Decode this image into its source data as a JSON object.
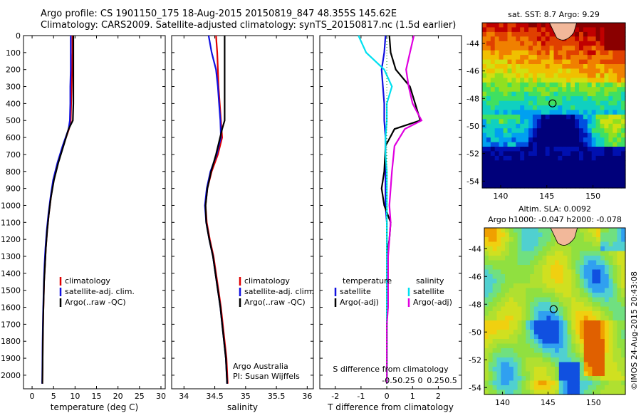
{
  "title_line1": "Argo profile: CS 1901150_175 18-Aug-2015 20150819_847 48.355S 145.62E",
  "title_line2": "Climatology: CARS2009. Satellite-adjusted climatology: synTS_20150817.nc (1.5d earlier)",
  "colors": {
    "climatology": "#e00000",
    "satellite": "#1010e0",
    "argo": "#000000",
    "sat_salinity": "#00e0f0",
    "argo_salinity_adj": "#e000e0"
  },
  "depth_ticks": [
    "0",
    "100",
    "200",
    "300",
    "400",
    "500",
    "600",
    "700",
    "800",
    "900",
    "1000",
    "1100",
    "1200",
    "1300",
    "1400",
    "1500",
    "1600",
    "1700",
    "1800",
    "1900",
    "2000"
  ],
  "chart_data": [
    {
      "type": "line",
      "xlabel": "temperature (deg C)",
      "xlim": [
        -2,
        31
      ],
      "xticks": [
        "0",
        "5",
        "10",
        "15",
        "20",
        "25",
        "30"
      ],
      "ylim": [
        2080,
        0
      ],
      "legend": [
        "climatology",
        "satellite-adj. clim.",
        "Argo(..raw -QC)"
      ],
      "legend_placement": "lower-right",
      "series": [
        {
          "name": "climatology",
          "color": "#e00000",
          "x": [
            9.4,
            9.4,
            9.3,
            9.2,
            9.1,
            9.0,
            8.6,
            7.2,
            6.0,
            5.0,
            4.4,
            3.9,
            3.5,
            3.2,
            3.0,
            2.8,
            2.7,
            2.6,
            2.5,
            2.45,
            2.4
          ],
          "y": [
            0,
            100,
            200,
            300,
            400,
            500,
            550,
            650,
            750,
            850,
            950,
            1050,
            1150,
            1250,
            1350,
            1450,
            1550,
            1650,
            1800,
            1950,
            2050
          ]
        },
        {
          "name": "satellite-adj. clim.",
          "color": "#1010e0",
          "x": [
            9.0,
            9.0,
            9.0,
            8.9,
            8.9,
            8.8,
            8.5,
            7.1,
            5.9,
            4.9,
            4.3,
            3.8,
            3.4,
            3.1,
            2.9,
            2.75,
            2.65,
            2.55,
            2.45,
            2.4,
            2.35
          ],
          "y": [
            0,
            100,
            200,
            300,
            400,
            500,
            550,
            650,
            750,
            850,
            950,
            1050,
            1150,
            1250,
            1350,
            1450,
            1550,
            1650,
            1800,
            1950,
            2050
          ]
        },
        {
          "name": "Argo(..raw -QC)",
          "color": "#000000",
          "x": [
            9.6,
            9.6,
            9.6,
            9.6,
            9.6,
            9.5,
            8.5,
            7.3,
            6.1,
            5.1,
            4.4,
            3.9,
            3.5,
            3.2,
            3.0,
            2.8,
            2.7,
            2.6,
            2.5,
            2.45,
            2.4
          ],
          "y": [
            0,
            100,
            200,
            300,
            400,
            500,
            550,
            650,
            750,
            850,
            950,
            1050,
            1150,
            1250,
            1350,
            1450,
            1550,
            1650,
            1800,
            1950,
            2050
          ]
        }
      ]
    },
    {
      "type": "line",
      "xlabel": "salinity",
      "xlim": [
        33.8,
        36.1
      ],
      "xticks": [
        "34",
        "34.5",
        "35",
        "35.5",
        "36"
      ],
      "ylim": [
        2080,
        0
      ],
      "legend": [
        "climatology",
        "satellite-adj. clim.",
        "Argo(..raw -QC)"
      ],
      "legend_placement": "lower-right",
      "annotation": [
        "Argo Australia",
        "PI: Susan Wijffels"
      ],
      "series": [
        {
          "name": "climatology",
          "color": "#e00000",
          "x": [
            34.52,
            34.54,
            34.55,
            34.56,
            34.58,
            34.6,
            34.62,
            34.55,
            34.45,
            34.38,
            34.35,
            34.37,
            34.42,
            34.48,
            34.52,
            34.56,
            34.6,
            34.63,
            34.66,
            34.69,
            34.71
          ],
          "y": [
            0,
            100,
            200,
            300,
            400,
            500,
            600,
            700,
            800,
            900,
            1000,
            1100,
            1200,
            1300,
            1400,
            1500,
            1600,
            1700,
            1800,
            1900,
            2050
          ]
        },
        {
          "name": "satellite-adj. clim.",
          "color": "#1010e0",
          "x": [
            34.4,
            34.45,
            34.52,
            34.55,
            34.57,
            34.59,
            34.6,
            34.53,
            34.43,
            34.37,
            34.34,
            34.36,
            34.41,
            34.47,
            34.51,
            34.55,
            34.59,
            34.62,
            34.65,
            34.68,
            34.7
          ],
          "y": [
            0,
            100,
            200,
            300,
            400,
            500,
            600,
            700,
            800,
            900,
            1000,
            1100,
            1200,
            1300,
            1400,
            1500,
            1600,
            1700,
            1800,
            1900,
            2050
          ]
        },
        {
          "name": "Argo(..raw -QC)",
          "color": "#000000",
          "x": [
            34.66,
            34.66,
            34.66,
            34.66,
            34.66,
            34.66,
            34.62,
            34.52,
            34.44,
            34.38,
            34.35,
            34.36,
            34.41,
            34.47,
            34.51,
            34.55,
            34.59,
            34.62,
            34.65,
            34.68,
            34.7
          ],
          "y": [
            0,
            100,
            200,
            300,
            400,
            500,
            550,
            700,
            800,
            900,
            1000,
            1100,
            1200,
            1300,
            1400,
            1500,
            1600,
            1700,
            1800,
            1900,
            2050
          ]
        }
      ]
    },
    {
      "type": "line",
      "xlabel": "T difference from climatology",
      "xlabel_top": "S difference from climatology",
      "xlim": [
        -2.6,
        2.9
      ],
      "xticks": [
        "-2",
        "-1",
        "0",
        "1",
        "2"
      ],
      "top_ticks": [
        "-0.5",
        "-0.25",
        "0",
        "0.25",
        "0.5"
      ],
      "ylim": [
        2080,
        0
      ],
      "legend_headers": [
        "temperature",
        "salinity"
      ],
      "legend": [
        "satellite",
        "Argo(-adj)",
        "satellite",
        "Argo(-adj)"
      ],
      "legend_placement": "lower-center",
      "series": [
        {
          "name": "satellite",
          "color": "#1010e0",
          "x": [
            -0.05,
            -0.1,
            -0.2,
            -0.15,
            -0.1,
            -0.1,
            -0.05,
            -0.05,
            -0.05,
            -0.05,
            -0.05,
            0,
            0,
            0,
            0,
            0,
            0,
            0,
            0,
            0,
            0
          ],
          "y": [
            0,
            100,
            200,
            300,
            400,
            500,
            600,
            700,
            800,
            900,
            1000,
            1100,
            1200,
            1300,
            1400,
            1500,
            1600,
            1700,
            1800,
            1900,
            2050
          ]
        },
        {
          "name": "Argo(-adj)",
          "color": "#000000",
          "x": [
            0.1,
            0.15,
            0.35,
            0.9,
            1.1,
            1.3,
            0.3,
            -0.05,
            -0.1,
            -0.2,
            -0.1,
            0.15,
            0.1,
            0.0,
            0.0,
            0.0,
            0.0,
            0.0,
            0.0,
            0.0,
            0.0
          ],
          "y": [
            0,
            100,
            200,
            300,
            400,
            500,
            550,
            650,
            800,
            900,
            1000,
            1100,
            1200,
            1300,
            1400,
            1500,
            1600,
            1700,
            1800,
            1900,
            2050
          ]
        },
        {
          "name": "satellite",
          "color": "#00e0f0",
          "x": [
            -1.1,
            -0.8,
            -0.1,
            0.2,
            0.0,
            0.0,
            -0.05,
            -0.05,
            0.0,
            0.0,
            0.0,
            0.0,
            0.0,
            0.0,
            0.0,
            0.0,
            0.0,
            0.0,
            0.0,
            0.0,
            0.0
          ],
          "y": [
            0,
            100,
            200,
            300,
            400,
            500,
            600,
            700,
            800,
            900,
            1000,
            1100,
            1200,
            1300,
            1400,
            1500,
            1600,
            1700,
            1800,
            1900,
            2050
          ]
        },
        {
          "name": "Argo(-adj)",
          "color": "#e000e0",
          "x": [
            1.05,
            0.9,
            0.75,
            0.85,
            1.0,
            1.35,
            0.7,
            0.3,
            0.2,
            0.15,
            0.1,
            0.15,
            0.1,
            0.05,
            0.05,
            0.05,
            0.05,
            0.0,
            0.0,
            0.0,
            0.0
          ],
          "y": [
            0,
            100,
            200,
            300,
            400,
            500,
            550,
            650,
            800,
            900,
            1000,
            1100,
            1200,
            1300,
            1400,
            1500,
            1600,
            1700,
            1800,
            1900,
            2050
          ]
        }
      ]
    },
    {
      "type": "heatmap",
      "title": "sat. SST: 8.7 Argo: 9.29",
      "xticks": [
        "140",
        "145",
        "150"
      ],
      "yticks": [
        "-44",
        "-46",
        "-48",
        "-50",
        "-52",
        "-54"
      ],
      "xlim": [
        138,
        153.5
      ],
      "ylim": [
        -54.5,
        -42.5
      ],
      "marker": {
        "lon": 145.62,
        "lat": -48.355
      }
    },
    {
      "type": "heatmap",
      "title_line1": "Altim. SLA: 0.0092",
      "title_line2": "Argo h1000: -0.047 h2000: -0.078",
      "xticks": [
        "140",
        "145",
        "150"
      ],
      "yticks": [
        "-44",
        "-46",
        "-48",
        "-50",
        "-52",
        "-54"
      ],
      "xlim": [
        138,
        153.5
      ],
      "ylim": [
        -54.5,
        -42.5
      ],
      "marker": {
        "lon": 145.62,
        "lat": -48.355
      }
    }
  ],
  "credit": "©IMOS 24-Aug-2015 20:43:08"
}
